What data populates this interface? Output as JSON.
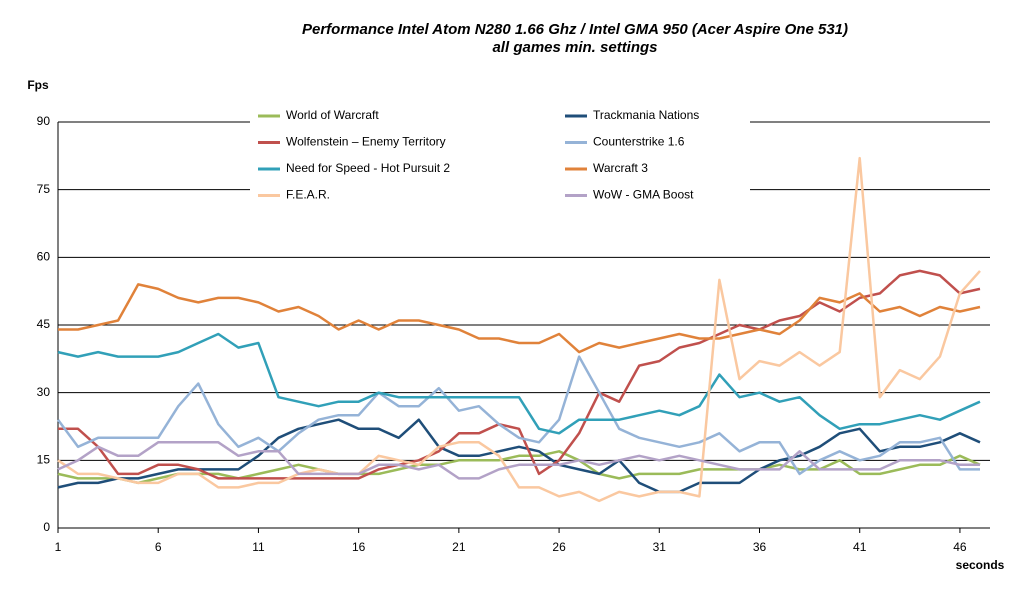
{
  "chart_data": {
    "type": "line",
    "title": "Performance Intel Atom N280 1.66 Ghz / Intel GMA 950 (Acer Aspire One 531)",
    "subtitle": "all games min. settings",
    "y_label": "Fps",
    "x_label": "seconds",
    "x": [
      1,
      2,
      3,
      4,
      5,
      6,
      7,
      8,
      9,
      10,
      11,
      12,
      13,
      14,
      15,
      16,
      17,
      18,
      19,
      20,
      21,
      22,
      23,
      24,
      25,
      26,
      27,
      28,
      29,
      30,
      31,
      32,
      33,
      34,
      35,
      36,
      37,
      38,
      39,
      40,
      41,
      42,
      43,
      44,
      45,
      46,
      47
    ],
    "xlim": [
      1,
      47.5
    ],
    "xticks": [
      1,
      6,
      11,
      16,
      21,
      26,
      31,
      36,
      41,
      46
    ],
    "ylim": [
      0,
      90
    ],
    "yticks": [
      0,
      15,
      30,
      45,
      60,
      75,
      90
    ],
    "grid": true,
    "series": [
      {
        "name": "World of Warcraft",
        "color": "#9bbb59",
        "values": [
          12,
          11,
          11,
          11,
          10,
          11,
          12,
          12,
          12,
          11,
          12,
          13,
          14,
          13,
          12,
          12,
          12,
          13,
          14,
          14,
          15,
          15,
          15,
          16,
          16,
          17,
          15,
          12,
          11,
          12,
          12,
          12,
          13,
          13,
          13,
          13,
          14,
          13,
          13,
          15,
          12,
          12,
          13,
          14,
          14,
          16,
          14
        ]
      },
      {
        "name": "Trackmania  Nations",
        "color": "#1f4e79",
        "values": [
          9,
          10,
          10,
          11,
          11,
          12,
          13,
          13,
          13,
          13,
          16,
          20,
          22,
          23,
          24,
          22,
          22,
          20,
          24,
          18,
          16,
          16,
          17,
          18,
          17,
          14,
          13,
          12,
          15,
          10,
          8,
          8,
          10,
          10,
          10,
          13,
          15,
          16,
          18,
          21,
          22,
          17,
          18,
          18,
          19,
          21,
          19
        ]
      },
      {
        "name": "Wolfenstein – Enemy Territory",
        "color": "#c0504d",
        "values": [
          22,
          22,
          18,
          12,
          12,
          14,
          14,
          13,
          11,
          11,
          11,
          11,
          11,
          11,
          11,
          11,
          13,
          14,
          15,
          17,
          21,
          21,
          23,
          22,
          12,
          15,
          21,
          30,
          28,
          36,
          37,
          40,
          41,
          43,
          45,
          44,
          46,
          47,
          50,
          48,
          51,
          52,
          56,
          57,
          56,
          52,
          53
        ]
      },
      {
        "name": "Counterstrike  1.6",
        "color": "#95b3d7",
        "values": [
          24,
          18,
          20,
          20,
          20,
          20,
          27,
          32,
          23,
          18,
          20,
          17,
          21,
          24,
          25,
          25,
          30,
          27,
          27,
          31,
          26,
          27,
          23,
          20,
          19,
          24,
          38,
          30,
          22,
          20,
          19,
          18,
          19,
          21,
          17,
          19,
          19,
          12,
          15,
          17,
          15,
          16,
          19,
          19,
          20,
          13,
          13
        ]
      },
      {
        "name": "Need for Speed - Hot Pursuit 2",
        "color": "#31a0b8",
        "values": [
          39,
          38,
          39,
          38,
          38,
          38,
          39,
          41,
          43,
          40,
          41,
          29,
          28,
          27,
          28,
          28,
          30,
          29,
          29,
          29,
          29,
          29,
          29,
          29,
          22,
          21,
          24,
          24,
          24,
          25,
          26,
          25,
          27,
          34,
          29,
          30,
          28,
          29,
          25,
          22,
          23,
          23,
          24,
          25,
          24,
          26,
          28
        ]
      },
      {
        "name": "Warcraft 3",
        "color": "#e0823a",
        "values": [
          44,
          44,
          45,
          46,
          54,
          53,
          51,
          50,
          51,
          51,
          50,
          48,
          49,
          47,
          44,
          46,
          44,
          46,
          46,
          45,
          44,
          42,
          42,
          41,
          41,
          43,
          39,
          41,
          40,
          41,
          42,
          43,
          42,
          42,
          43,
          44,
          43,
          46,
          51,
          50,
          52,
          48,
          49,
          47,
          49,
          48,
          49
        ]
      },
      {
        "name": "F.E.A.R.",
        "color": "#fac8a0",
        "values": [
          15,
          12,
          12,
          11,
          10,
          10,
          12,
          12,
          9,
          9,
          10,
          10,
          12,
          13,
          12,
          12,
          16,
          15,
          14,
          18,
          19,
          19,
          16,
          9,
          9,
          7,
          8,
          6,
          8,
          7,
          8,
          8,
          7,
          55,
          33,
          37,
          36,
          39,
          36,
          39,
          82,
          29,
          35,
          33,
          38,
          52,
          57
        ]
      },
      {
        "name": "WoW - GMA Boost",
        "color": "#b3a2c7",
        "values": [
          13,
          15,
          18,
          16,
          16,
          19,
          19,
          19,
          19,
          16,
          17,
          17,
          12,
          12,
          12,
          12,
          14,
          14,
          13,
          14,
          11,
          11,
          13,
          14,
          14,
          14,
          15,
          14,
          15,
          16,
          15,
          16,
          15,
          14,
          13,
          13,
          13,
          17,
          13,
          13,
          13,
          13,
          15,
          15,
          15,
          14,
          14
        ]
      }
    ]
  }
}
